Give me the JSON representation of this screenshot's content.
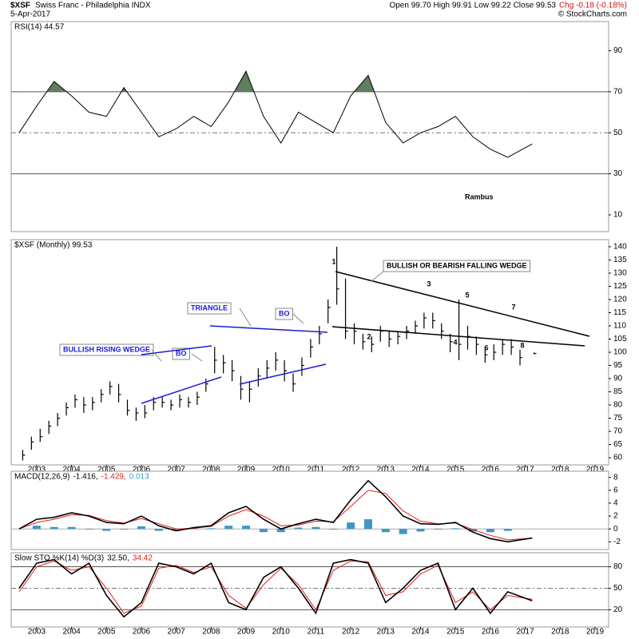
{
  "header": {
    "symbol": "$XSF",
    "name": "Swiss Franc - Philadelphia INDX",
    "date": "5-Apr-2017",
    "quote": "Open 99.70 High 99.91 Low 99.22 Close 99.53",
    "change": "Chg -0.18 (-0.18%)",
    "credit": "© StockCharts.com"
  },
  "chart_data": [
    {
      "type": "rsi",
      "title": "RSI(14) 44.57",
      "color": "#000000",
      "fill_color": "#5f7f5f",
      "xlim": [
        2002.27,
        2019.39
      ],
      "ylim": [
        1.8,
        104.2
      ],
      "yticks": [
        10,
        30,
        50,
        70,
        90
      ],
      "levels": [
        70,
        30
      ],
      "midline": 50,
      "x": [
        2002.5,
        2003,
        2003.5,
        2004,
        2004.5,
        2005,
        2005.5,
        2006,
        2006.5,
        2007,
        2007.5,
        2008,
        2008.5,
        2009,
        2009.5,
        2010,
        2010.5,
        2011,
        2011.5,
        2012,
        2012.5,
        2013,
        2013.5,
        2014,
        2014.5,
        2015,
        2015.5,
        2016,
        2016.5,
        2017.2
      ],
      "values": [
        50,
        63,
        75,
        68,
        60,
        58,
        72,
        60,
        48,
        52,
        58,
        53,
        65,
        80,
        58,
        45,
        60,
        55,
        50,
        68,
        78,
        55,
        45,
        50,
        53,
        58,
        48,
        42,
        38,
        44.57
      ],
      "annotations": [
        "Rambus"
      ]
    },
    {
      "type": "ohlc",
      "title": "$XSF (Monthly) 99.53",
      "color": "#000000",
      "xlim": [
        2002.27,
        2019.39
      ],
      "ylim": [
        57.3,
        142.7
      ],
      "yticks": [
        60,
        65,
        70,
        75,
        80,
        85,
        90,
        95,
        100,
        105,
        110,
        115,
        120,
        125,
        130,
        135,
        140
      ],
      "xticks": [
        2003,
        2004,
        2005,
        2006,
        2007,
        2008,
        2009,
        2010,
        2011,
        2012,
        2013,
        2014,
        2015,
        2016,
        2017,
        2018,
        2019
      ],
      "x": [
        2002.6,
        2002.85,
        2003.1,
        2003.35,
        2003.6,
        2003.85,
        2004.1,
        2004.35,
        2004.6,
        2004.85,
        2005.1,
        2005.35,
        2005.6,
        2005.85,
        2006.1,
        2006.35,
        2006.6,
        2006.85,
        2007.1,
        2007.35,
        2007.6,
        2007.85,
        2008.1,
        2008.35,
        2008.6,
        2008.85,
        2009.1,
        2009.35,
        2009.6,
        2009.85,
        2010.1,
        2010.35,
        2010.6,
        2010.85,
        2011.1,
        2011.35,
        2011.6,
        2011.85,
        2012.1,
        2012.35,
        2012.6,
        2012.85,
        2013.1,
        2013.35,
        2013.6,
        2013.85,
        2014.1,
        2014.35,
        2014.6,
        2014.85,
        2015.1,
        2015.35,
        2015.6,
        2015.85,
        2016.1,
        2016.35,
        2016.6,
        2016.85,
        2017.25
      ],
      "high": [
        63,
        68,
        71,
        74,
        77,
        81,
        84,
        83,
        83,
        86,
        89,
        88,
        82,
        79,
        80,
        83,
        83,
        82,
        84,
        83,
        85,
        90,
        102,
        99,
        97,
        91,
        89,
        94,
        97,
        100,
        97,
        92,
        98,
        105,
        110,
        120,
        140,
        128,
        111,
        107,
        106,
        110,
        108,
        108,
        110,
        112,
        115,
        115,
        111,
        107,
        120,
        110,
        106,
        102,
        103,
        105,
        105,
        101,
        99.91
      ],
      "low": [
        59,
        63,
        66,
        69,
        72,
        76,
        79,
        77,
        78,
        81,
        84,
        81,
        76,
        74,
        75,
        78,
        79,
        78,
        79,
        79,
        80,
        85,
        92,
        92,
        89,
        82,
        81,
        87,
        90,
        93,
        89,
        85,
        91,
        98,
        103,
        111,
        118,
        105,
        103,
        101,
        100,
        104,
        102,
        103,
        105,
        107,
        109,
        109,
        105,
        100,
        97,
        101,
        99,
        96,
        97,
        99,
        99,
        95,
        99.22
      ],
      "close": [
        61,
        66,
        68,
        72,
        75,
        79,
        82,
        80,
        81,
        84,
        87,
        84,
        78,
        77,
        77,
        81,
        81,
        80,
        82,
        81,
        83,
        88,
        97,
        96,
        93,
        86,
        86,
        91,
        94,
        97,
        93,
        88,
        95,
        102,
        107,
        117,
        124,
        108,
        108,
        104,
        103,
        108,
        105,
        106,
        108,
        110,
        113,
        112,
        108,
        104,
        103,
        106,
        103,
        99,
        100,
        103,
        102,
        98,
        99.53
      ],
      "annotations": [
        "BULLISH RISING WEDGE",
        "BO",
        "TRIANGLE",
        "BO",
        "BULLISH OR BEARISH FALLING WEDGE",
        "1",
        "2",
        "3",
        "4",
        "5",
        "6",
        "7",
        "8"
      ]
    },
    {
      "type": "macd",
      "legend_labels": [
        "MACD(12,26,9)",
        "-1.416,",
        "-1.429,",
        "0.013"
      ],
      "xlim": [
        2002.27,
        2019.39
      ],
      "ylim": [
        -3.2,
        8.95
      ],
      "yticks": [
        -2,
        0,
        2,
        4,
        6,
        8
      ],
      "x": [
        2002.5,
        2003,
        2003.5,
        2004,
        2004.5,
        2005,
        2005.5,
        2006,
        2006.5,
        2007,
        2007.5,
        2008,
        2008.5,
        2009,
        2009.5,
        2010,
        2010.5,
        2011,
        2011.5,
        2012,
        2012.5,
        2013,
        2013.5,
        2014,
        2014.5,
        2015,
        2015.5,
        2016,
        2016.5,
        2017.2
      ],
      "series": [
        {
          "name": "MACD",
          "color": "#000000",
          "values": [
            0,
            1.5,
            1.8,
            2.5,
            2.0,
            1.0,
            0.8,
            2.0,
            0.5,
            -0.3,
            0.2,
            0.5,
            2.5,
            3.5,
            1.5,
            0.0,
            0.8,
            1.5,
            1.0,
            4.5,
            7.5,
            5.0,
            2.0,
            0.8,
            0.7,
            1.0,
            -0.5,
            -1.5,
            -2.0,
            -1.416
          ]
        },
        {
          "name": "Signal",
          "color": "#e0201c",
          "values": [
            0,
            1.0,
            1.5,
            2.2,
            2.1,
            1.3,
            0.9,
            1.6,
            0.8,
            0.0,
            0.1,
            0.4,
            2.0,
            3.0,
            2.0,
            0.5,
            0.6,
            1.2,
            1.1,
            3.5,
            6.0,
            5.5,
            2.8,
            1.2,
            0.8,
            0.9,
            -0.1,
            -1.0,
            -1.7,
            -1.429
          ]
        },
        {
          "name": "Histogram",
          "color": "#3d97c6",
          "values": [
            0,
            0.5,
            0.3,
            0.3,
            -0.1,
            -0.3,
            -0.1,
            0.4,
            -0.3,
            -0.3,
            0.1,
            0.1,
            0.5,
            0.5,
            -0.5,
            -0.5,
            0.2,
            0.3,
            -0.1,
            1.0,
            1.5,
            -0.5,
            -0.8,
            -0.4,
            -0.1,
            0.1,
            -0.4,
            -0.5,
            -0.3,
            0.013
          ]
        }
      ]
    },
    {
      "type": "stochastic",
      "legend_labels": [
        "Slow STO %K(14) %D(3)",
        "32.50,",
        "34.42"
      ],
      "xlim": [
        2002.27,
        2019.39
      ],
      "ylim": [
        -4.2,
        99.6
      ],
      "yticks": [
        20,
        50,
        80
      ],
      "levels": [
        80,
        20
      ],
      "midline": 50,
      "xticks": [
        2003,
        2004,
        2005,
        2006,
        2007,
        2008,
        2009,
        2010,
        2011,
        2012,
        2013,
        2014,
        2015,
        2016,
        2017,
        2018,
        2019
      ],
      "x": [
        2002.5,
        2003,
        2003.5,
        2004,
        2004.5,
        2005,
        2005.5,
        2006,
        2006.5,
        2007,
        2007.5,
        2008,
        2008.5,
        2009,
        2009.5,
        2010,
        2010.5,
        2011,
        2011.5,
        2012,
        2012.5,
        2013,
        2013.5,
        2014,
        2014.5,
        2015,
        2015.5,
        2016,
        2016.5,
        2017.2
      ],
      "series": [
        {
          "name": "%K",
          "color": "#000000",
          "values": [
            50,
            85,
            90,
            70,
            85,
            40,
            10,
            30,
            85,
            80,
            70,
            85,
            30,
            20,
            65,
            80,
            50,
            15,
            85,
            90,
            85,
            30,
            50,
            75,
            85,
            20,
            50,
            15,
            45,
            32.5
          ]
        },
        {
          "name": "%D",
          "color": "#e0201c",
          "values": [
            45,
            80,
            88,
            75,
            80,
            50,
            15,
            25,
            78,
            82,
            72,
            80,
            40,
            22,
            55,
            78,
            55,
            20,
            75,
            88,
            87,
            40,
            45,
            70,
            82,
            30,
            45,
            20,
            40,
            34.42
          ]
        }
      ]
    }
  ]
}
